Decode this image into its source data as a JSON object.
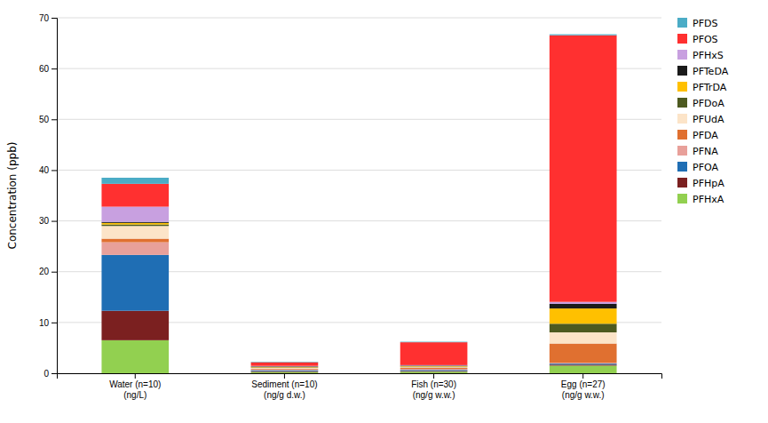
{
  "chart_data": {
    "type": "bar",
    "stacked": true,
    "categories": [
      "Water (n=10)\n(ng/L)",
      "Sediment (n=10)\n(ng/g d.w.)",
      "Fish (n=30)\n(ng/g w.w.)",
      "Egg (n=27)\n(ng/g w.w.)"
    ],
    "series": [
      {
        "name": "PFHxA",
        "color": "#92d050",
        "values": [
          6.5,
          0.25,
          0.3,
          1.5
        ]
      },
      {
        "name": "PFHpA",
        "color": "#7b2020",
        "values": [
          5.8,
          0.15,
          0.15,
          0.2
        ]
      },
      {
        "name": "PFOA",
        "color": "#1f6eb4",
        "values": [
          11.0,
          0.2,
          0.2,
          0.2
        ]
      },
      {
        "name": "PFNA",
        "color": "#e8a09a",
        "values": [
          2.5,
          0.15,
          0.2,
          0.15
        ]
      },
      {
        "name": "PFDA",
        "color": "#e07030",
        "values": [
          0.7,
          0.15,
          0.2,
          3.8
        ]
      },
      {
        "name": "PFUdA",
        "color": "#fce4c8",
        "values": [
          2.5,
          0.15,
          0.15,
          2.2
        ]
      },
      {
        "name": "PFDoA",
        "color": "#4d5a20",
        "values": [
          0.3,
          0.1,
          0.1,
          1.7
        ]
      },
      {
        "name": "PFTrDA",
        "color": "#ffc000",
        "values": [
          0.3,
          0.1,
          0.1,
          3.0
        ]
      },
      {
        "name": "PFTeDA",
        "color": "#1a1a1a",
        "values": [
          0.2,
          0.1,
          0.1,
          0.9
        ]
      },
      {
        "name": "PFHxS",
        "color": "#c8a0e0",
        "values": [
          3.0,
          0.1,
          0.1,
          0.4
        ]
      },
      {
        "name": "PFOS",
        "color": "#ff3030",
        "values": [
          4.5,
          0.7,
          4.5,
          52.5
        ]
      },
      {
        "name": "PFDS",
        "color": "#4bacc6",
        "values": [
          1.2,
          0.1,
          0.1,
          0.2
        ]
      }
    ],
    "ylabel": "Concentration (ppb)",
    "ylim": [
      0,
      70
    ],
    "yticks": [
      0,
      10,
      20,
      30,
      40,
      50,
      60,
      70
    ],
    "grid": true,
    "legend": "right"
  }
}
